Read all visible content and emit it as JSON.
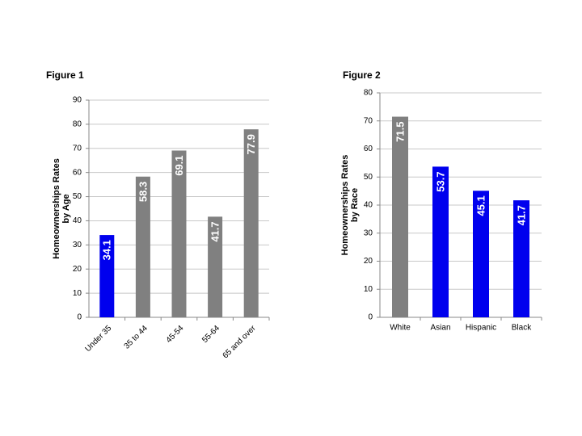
{
  "chart_data": [
    {
      "type": "bar",
      "title": "Figure 1",
      "y_label": [
        "Homeownerships Rates",
        "by Age"
      ],
      "categories": [
        "Under 35",
        "35 to 44",
        "45-54",
        "55-64",
        "65 and over"
      ],
      "values": [
        34.1,
        58.3,
        69.1,
        41.7,
        77.9
      ],
      "colors": [
        "#0000ee",
        "#808080",
        "#808080",
        "#808080",
        "#808080"
      ],
      "ylim": [
        0,
        90
      ],
      "yticks": [
        0,
        10,
        20,
        30,
        40,
        50,
        60,
        70,
        80,
        90
      ],
      "grid": true
    },
    {
      "type": "bar",
      "title": "Figure 2",
      "y_label": [
        "Homeownerships Rates",
        "by Race"
      ],
      "categories": [
        "White",
        "Asian",
        "Hispanic",
        "Black"
      ],
      "values": [
        71.5,
        53.7,
        45.1,
        41.7
      ],
      "colors": [
        "#808080",
        "#0000ee",
        "#0000ee",
        "#0000ee"
      ],
      "ylim": [
        0,
        80
      ],
      "yticks": [
        0,
        10,
        20,
        30,
        40,
        50,
        60,
        70,
        80
      ],
      "grid": true
    }
  ]
}
